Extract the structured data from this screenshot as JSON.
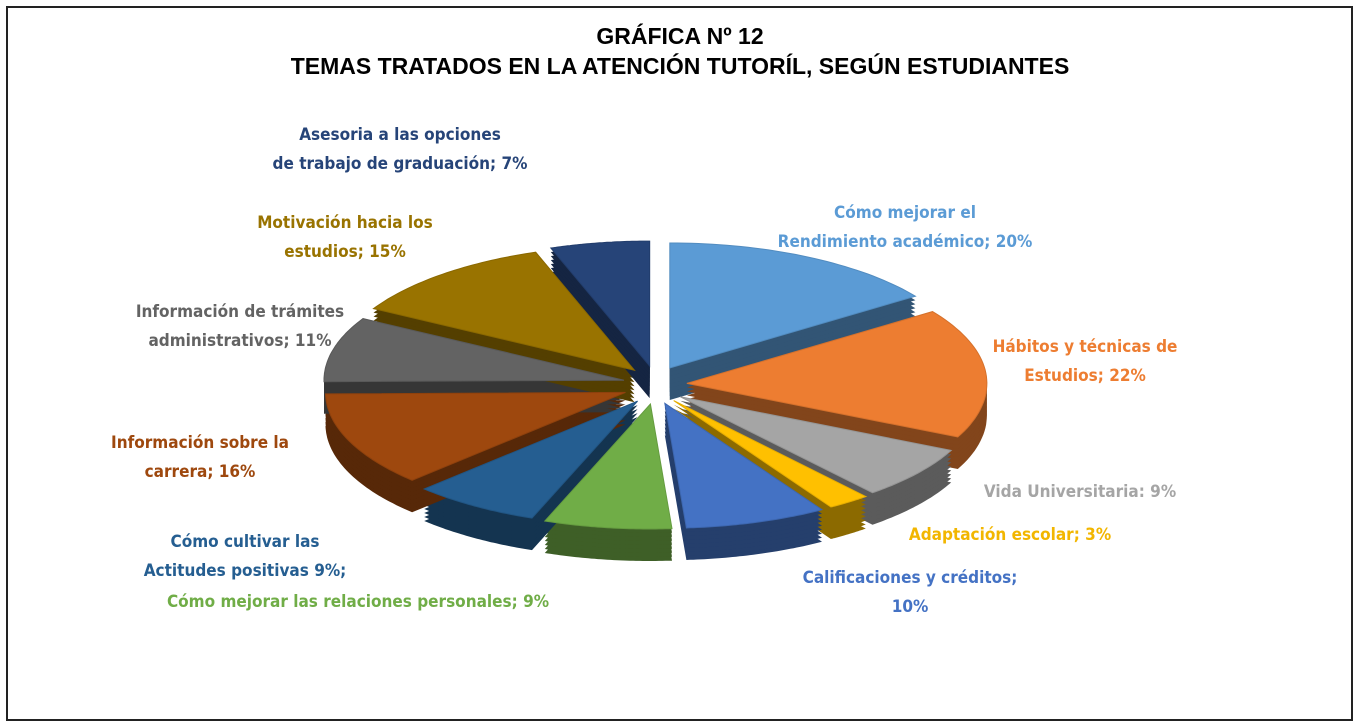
{
  "chart_data": {
    "type": "pie",
    "title": "GRÁFICA Nº 12",
    "subtitle": "TEMAS TRATADOS EN LA ATENCIÓN TUTORÍL, SEGÚN ESTUDIANTES",
    "categories": [
      "Cómo mejorar el\nRendimiento académico;",
      "Hábitos y técnicas de\nEstudios;",
      "Vida Universitaria:",
      "Adaptación escolar;",
      "Calificaciones y créditos;\n",
      "Cómo mejorar las relaciones personales;",
      "Cómo cultivar las\nActitudes positivas",
      "Información sobre la\ncarrera;",
      "Información de trámites\nadministrativos;",
      "Motivación hacia los\nestudios;",
      "Asesoria a las opciones\nde trabajo de graduación;"
    ],
    "values": [
      20,
      22,
      9,
      3,
      10,
      9,
      9,
      16,
      11,
      15,
      7
    ],
    "value_labels": [
      "20%",
      "22%",
      "9%",
      "3%",
      "10%",
      "9%",
      "9%;",
      "16%",
      "11%",
      "15%",
      "7%"
    ],
    "colors": [
      "#5b9bd5",
      "#ed7d31",
      "#a5a5a5",
      "#ffc000",
      "#4472c4",
      "#70ad47",
      "#255e91",
      "#9e480e",
      "#636363",
      "#997300",
      "#264478"
    ]
  }
}
